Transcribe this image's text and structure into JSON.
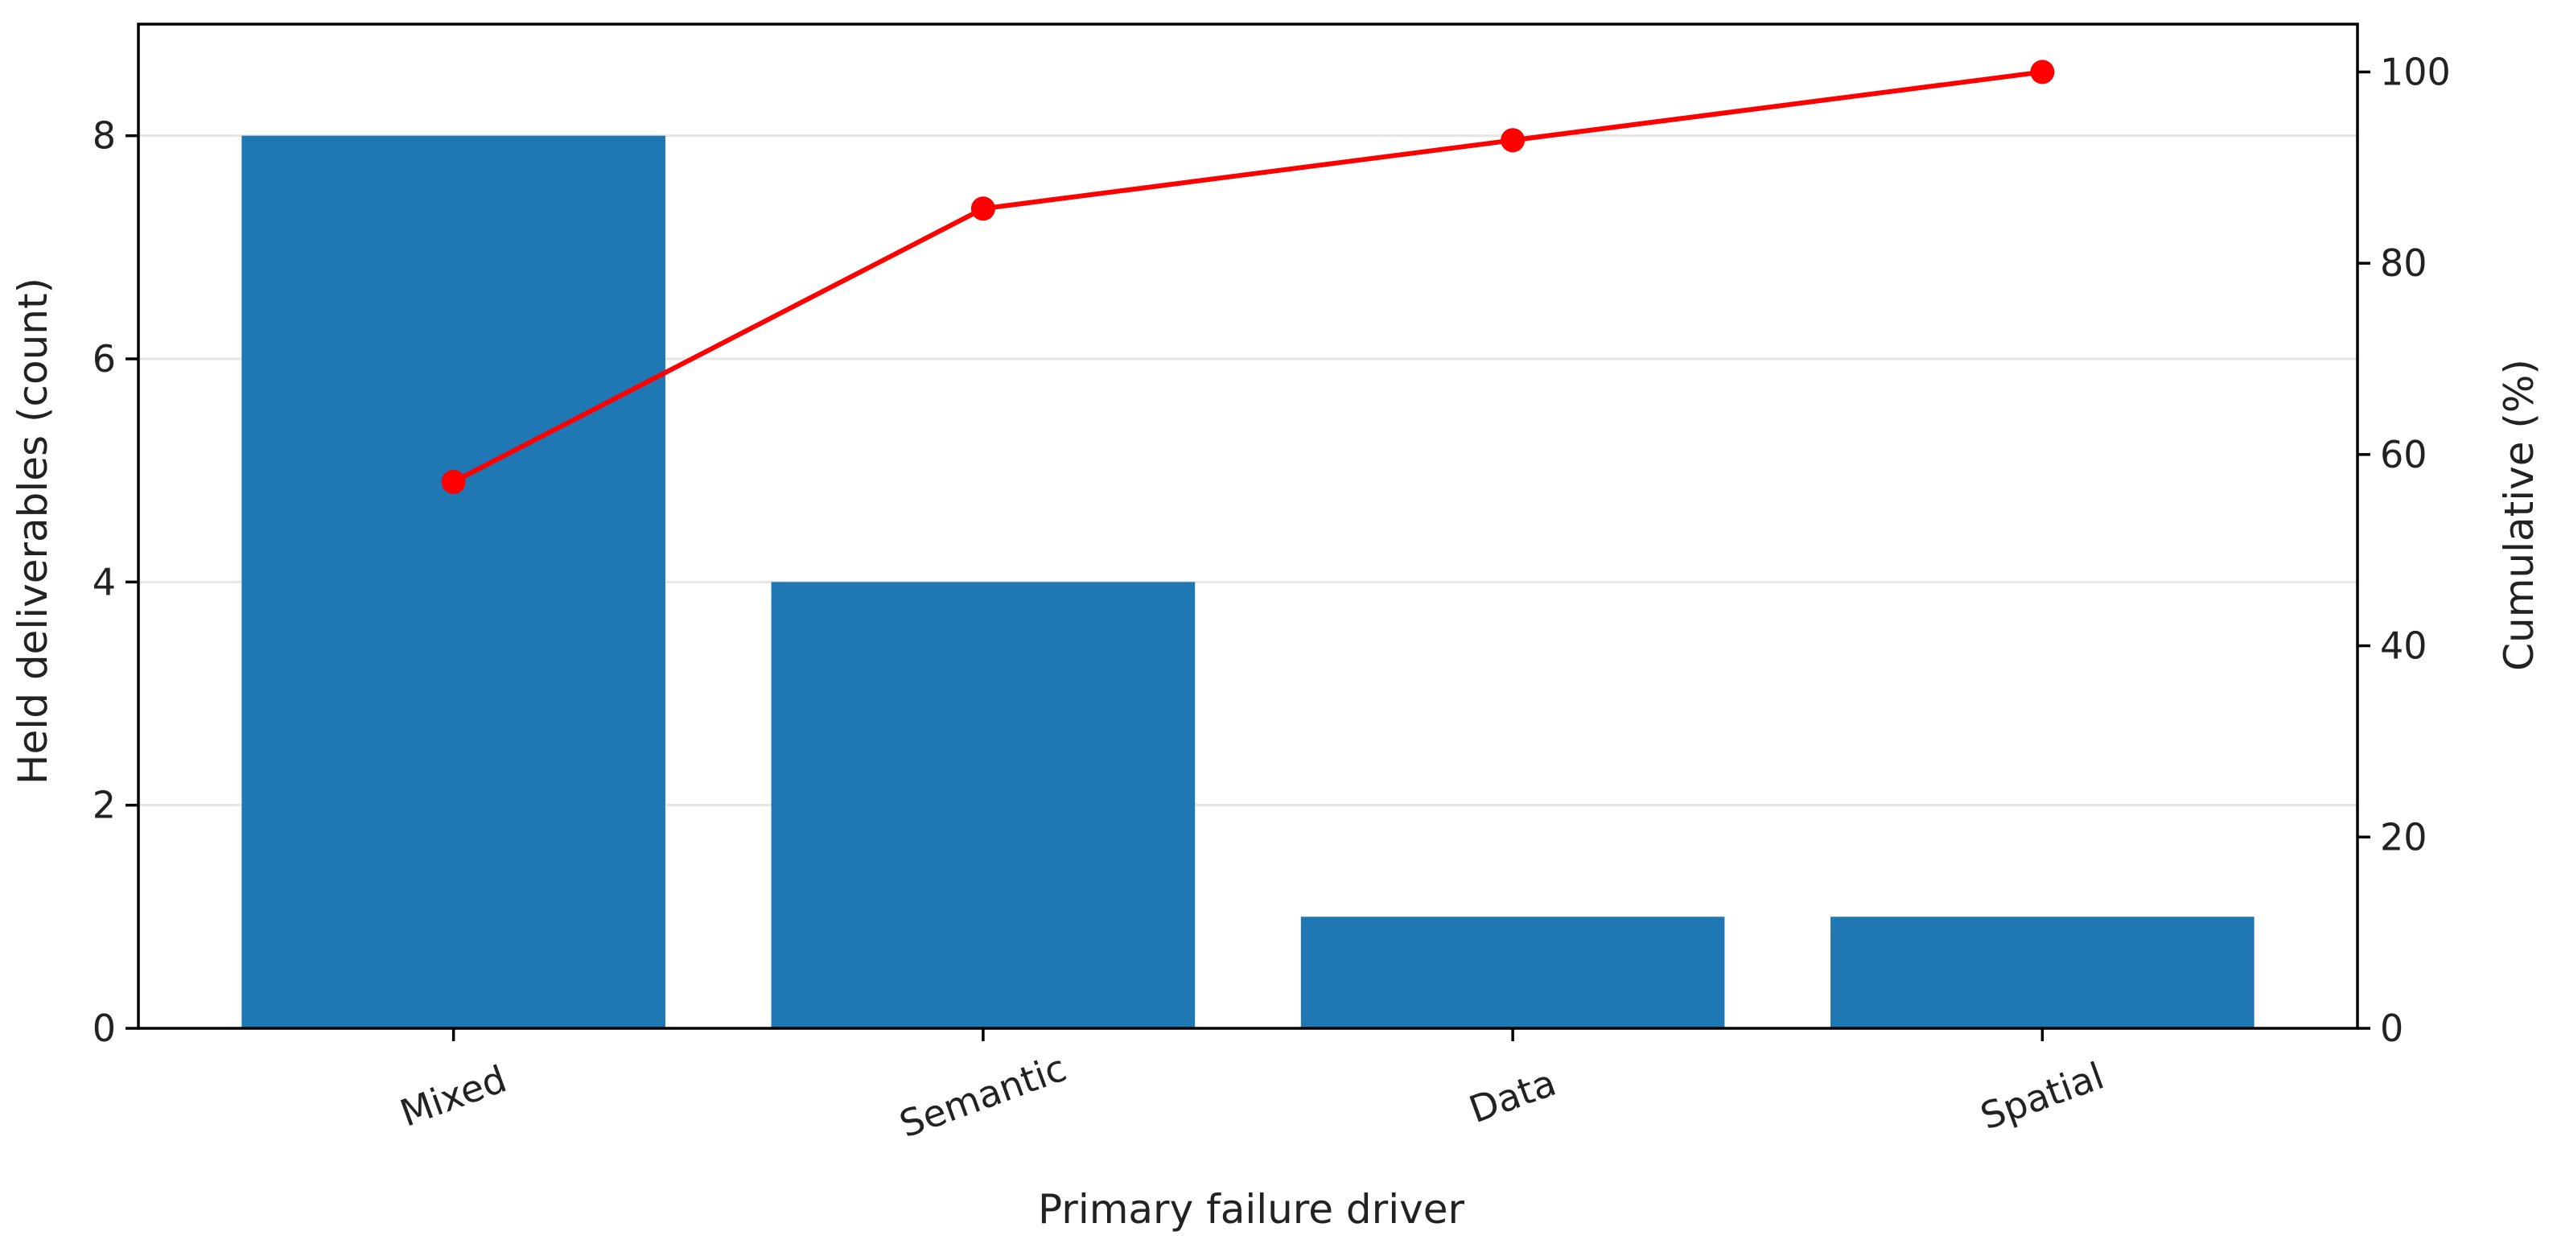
{
  "chart_data": {
    "type": "bar",
    "title": "",
    "xlabel": "Primary failure driver",
    "ylabel": "Held deliverables (count)",
    "y2label": "Cumulative (%)",
    "categories": [
      "Mixed",
      "Semantic",
      "Data",
      "Spatial"
    ],
    "series": [
      {
        "name": "",
        "type": "bar",
        "axis": "left",
        "values": [
          8,
          4,
          1,
          1
        ]
      },
      {
        "name": "",
        "type": "line",
        "axis": "right",
        "values": [
          57.14,
          85.71,
          92.86,
          100.0
        ]
      }
    ],
    "ylim": [
      0,
      9
    ],
    "y2lim": [
      0,
      105
    ],
    "yticks": [
      0,
      2,
      4,
      6,
      8
    ],
    "y2ticks": [
      0,
      20,
      40,
      60,
      80,
      100
    ],
    "grid": true,
    "legend": "none",
    "colors": {
      "bar": "#1f77b4",
      "line": "#ff0000",
      "grid": "#e6e6e6",
      "axis": "#000000"
    }
  }
}
